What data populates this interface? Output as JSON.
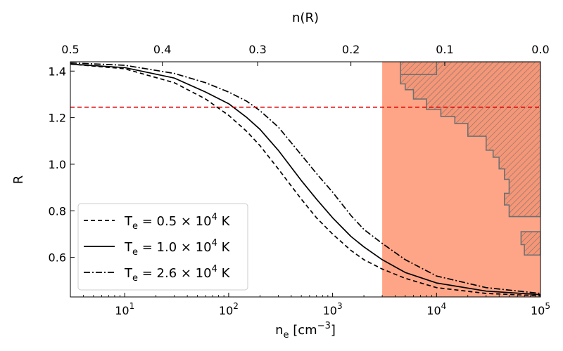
{
  "chart_data": {
    "type": "line",
    "x_scale": "log",
    "xlim": [
      3,
      100000
    ],
    "ylim": [
      0.43,
      1.44
    ],
    "xlabel": "n_e [cm^-3]",
    "ylabel": "R",
    "top_xlabel": "n(R)",
    "bottom_ticks": [
      {
        "value": 10,
        "base": "10",
        "exp": "1"
      },
      {
        "value": 100,
        "base": "10",
        "exp": "2"
      },
      {
        "value": 1000,
        "base": "10",
        "exp": "3"
      },
      {
        "value": 10000,
        "base": "10",
        "exp": "4"
      },
      {
        "value": 100000,
        "base": "10",
        "exp": "5"
      }
    ],
    "left_ticks": [
      {
        "value": 0.6,
        "label": "0.6"
      },
      {
        "value": 0.8,
        "label": "0.8"
      },
      {
        "value": 1.0,
        "label": "1.0"
      },
      {
        "value": 1.2,
        "label": "1.2"
      },
      {
        "value": 1.4,
        "label": "1.4"
      }
    ],
    "top_ticks": [
      {
        "value": 3,
        "label": "0.5"
      },
      {
        "value": 23,
        "label": "0.4"
      },
      {
        "value": 190,
        "label": "0.3"
      },
      {
        "value": 1500,
        "label": "0.2"
      },
      {
        "value": 12000,
        "label": "0.1"
      },
      {
        "value": 100000,
        "label": "0.0"
      }
    ],
    "series": [
      {
        "name": "Te = 0.5 × 10^4 K",
        "legend": {
          "prefix": "T",
          "sub": "e",
          "mid": " = 0.5 × 10",
          "exp": "4",
          "suffix": " K"
        },
        "style": "dashed",
        "x": [
          3,
          10,
          30,
          60,
          100,
          150,
          200,
          300,
          500,
          700,
          1000,
          1500,
          2000,
          3000,
          5000,
          10000,
          30000,
          100000
        ],
        "y": [
          1.43,
          1.41,
          1.35,
          1.28,
          1.21,
          1.14,
          1.08,
          0.98,
          0.85,
          0.77,
          0.7,
          0.63,
          0.59,
          0.55,
          0.51,
          0.47,
          0.445,
          0.435
        ]
      },
      {
        "name": "Te = 1.0 × 10^4 K",
        "legend": {
          "prefix": "T",
          "sub": "e",
          "mid": " = 1.0 × 10",
          "exp": "4",
          "suffix": " K"
        },
        "style": "solid",
        "x": [
          3,
          10,
          30,
          60,
          100,
          150,
          200,
          300,
          500,
          700,
          1000,
          1500,
          2000,
          3000,
          5000,
          10000,
          30000,
          100000
        ],
        "y": [
          1.43,
          1.415,
          1.37,
          1.31,
          1.26,
          1.2,
          1.15,
          1.06,
          0.93,
          0.85,
          0.77,
          0.69,
          0.645,
          0.59,
          0.535,
          0.49,
          0.455,
          0.44
        ]
      },
      {
        "name": "Te = 2.6 × 10^4 K",
        "legend": {
          "prefix": "T",
          "sub": "e",
          "mid": " = 2.6 × 10",
          "exp": "4",
          "suffix": " K"
        },
        "style": "dashdot",
        "x": [
          3,
          10,
          30,
          60,
          100,
          150,
          200,
          300,
          500,
          700,
          1000,
          1500,
          2000,
          3000,
          5000,
          10000,
          30000,
          100000
        ],
        "y": [
          1.435,
          1.425,
          1.39,
          1.35,
          1.31,
          1.27,
          1.23,
          1.16,
          1.04,
          0.96,
          0.88,
          0.78,
          0.72,
          0.66,
          0.59,
          0.52,
          0.47,
          0.445
        ]
      }
    ],
    "hline": {
      "y": 1.245,
      "color": "#e00000",
      "style": "dashed"
    },
    "shaded_region": {
      "x0": 3000,
      "x1": 100000,
      "color": "#ffa587"
    },
    "hatched_region": {
      "fill": "#f59677",
      "edge": "#707070",
      "boundary": [
        [
          4500,
          1.44
        ],
        [
          4500,
          1.385
        ],
        [
          4500,
          1.345
        ],
        [
          5000,
          1.345
        ],
        [
          5000,
          1.32
        ],
        [
          6000,
          1.32
        ],
        [
          6000,
          1.28
        ],
        [
          8000,
          1.28
        ],
        [
          8000,
          1.235
        ],
        [
          11000,
          1.235
        ],
        [
          11000,
          1.205
        ],
        [
          15000,
          1.205
        ],
        [
          15000,
          1.175
        ],
        [
          20000,
          1.175
        ],
        [
          20000,
          1.12
        ],
        [
          30000,
          1.12
        ],
        [
          30000,
          1.06
        ],
        [
          35000,
          1.06
        ],
        [
          35000,
          1.03
        ],
        [
          40000,
          1.03
        ],
        [
          40000,
          0.98
        ],
        [
          45000,
          0.98
        ],
        [
          45000,
          0.935
        ],
        [
          50000,
          0.935
        ],
        [
          50000,
          0.875
        ],
        [
          45000,
          0.875
        ],
        [
          45000,
          0.825
        ],
        [
          50000,
          0.825
        ],
        [
          50000,
          0.775
        ],
        [
          100000,
          0.775
        ],
        [
          100000,
          1.44
        ]
      ],
      "boundary_top_join": [
        [
          4500,
          1.385
        ],
        [
          10000,
          1.385
        ],
        [
          10000,
          1.44
        ]
      ],
      "island": [
        [
          65000,
          0.71
        ],
        [
          65000,
          0.655
        ],
        [
          70000,
          0.655
        ],
        [
          70000,
          0.61
        ],
        [
          100000,
          0.61
        ],
        [
          100000,
          0.71
        ]
      ]
    },
    "legend_position": "lower-left"
  }
}
